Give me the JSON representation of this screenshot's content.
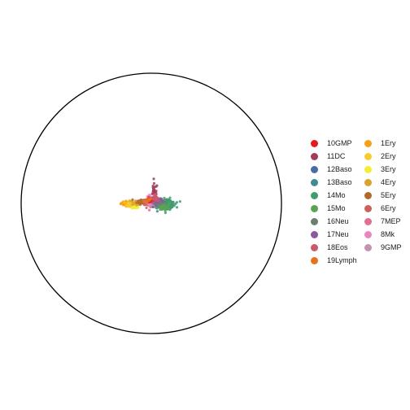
{
  "chart_data": {
    "type": "scatter",
    "title": "",
    "xlabel": "",
    "ylabel": "",
    "grid": false,
    "legend_placement": "right",
    "boundary": "circle",
    "legend": [
      {
        "label": "10GMP",
        "color": "#e41a1c"
      },
      {
        "label": "11DC",
        "color": "#a03c5c"
      },
      {
        "label": "12Baso",
        "color": "#4a6ca4"
      },
      {
        "label": "13Baso",
        "color": "#3f8b93"
      },
      {
        "label": "14Mo",
        "color": "#3f9d71"
      },
      {
        "label": "15Mo",
        "color": "#58a452"
      },
      {
        "label": "16Neu",
        "color": "#6b7f72"
      },
      {
        "label": "17Neu",
        "color": "#8a5aa0"
      },
      {
        "label": "18Eos",
        "color": "#c85a6c"
      },
      {
        "label": "19Lymph",
        "color": "#e4731e"
      },
      {
        "label": "1Ery",
        "color": "#f4a018"
      },
      {
        "label": "2Ery",
        "color": "#f8cb2c"
      },
      {
        "label": "3Ery",
        "color": "#f2ee38"
      },
      {
        "label": "4Ery",
        "color": "#d9a42d"
      },
      {
        "label": "5Ery",
        "color": "#b0682c"
      },
      {
        "label": "6Ery",
        "color": "#c9625a"
      },
      {
        "label": "7MEP",
        "color": "#e0708f"
      },
      {
        "label": "8Mk",
        "color": "#e886be"
      },
      {
        "label": "9GMP",
        "color": "#c493ae"
      }
    ],
    "clusters": [
      {
        "label": "1Ery",
        "x": -0.62,
        "y": 0.0,
        "sx": 0.08,
        "sy": 0.03,
        "n": 45
      },
      {
        "label": "2Ery",
        "x": -0.52,
        "y": -0.03,
        "sx": 0.08,
        "sy": 0.04,
        "n": 45
      },
      {
        "label": "3Ery",
        "x": -0.4,
        "y": -0.08,
        "sx": 0.05,
        "sy": 0.03,
        "n": 20
      },
      {
        "label": "4Ery",
        "x": -0.38,
        "y": 0.02,
        "sx": 0.07,
        "sy": 0.04,
        "n": 35
      },
      {
        "label": "5Ery",
        "x": -0.2,
        "y": 0.05,
        "sx": 0.08,
        "sy": 0.04,
        "n": 40
      },
      {
        "label": "6Ery",
        "x": -0.06,
        "y": 0.0,
        "sx": 0.06,
        "sy": 0.05,
        "n": 40
      },
      {
        "label": "7MEP",
        "x": 0.02,
        "y": 0.03,
        "sx": 0.07,
        "sy": 0.06,
        "n": 50
      },
      {
        "label": "8Mk",
        "x": -0.03,
        "y": 0.1,
        "sx": 0.04,
        "sy": 0.06,
        "n": 25
      },
      {
        "label": "9GMP",
        "x": 0.12,
        "y": 0.02,
        "sx": 0.06,
        "sy": 0.04,
        "n": 30
      },
      {
        "label": "10GMP",
        "x": 0.05,
        "y": 0.1,
        "sx": 0.08,
        "sy": 0.06,
        "n": 35
      },
      {
        "label": "11DC",
        "x": 0.08,
        "y": 0.3,
        "sx": 0.04,
        "sy": 0.1,
        "n": 25
      },
      {
        "label": "12Baso",
        "x": 0.2,
        "y": -0.05,
        "sx": 0.06,
        "sy": 0.05,
        "n": 30
      },
      {
        "label": "13Baso",
        "x": 0.38,
        "y": -0.05,
        "sx": 0.1,
        "sy": 0.06,
        "n": 70
      },
      {
        "label": "14Mo",
        "x": 0.42,
        "y": 0.0,
        "sx": 0.1,
        "sy": 0.06,
        "n": 80
      },
      {
        "label": "15Mo",
        "x": 0.3,
        "y": -0.1,
        "sx": 0.08,
        "sy": 0.05,
        "n": 40
      },
      {
        "label": "16Neu",
        "x": 0.24,
        "y": 0.04,
        "sx": 0.07,
        "sy": 0.05,
        "n": 30
      },
      {
        "label": "17Neu",
        "x": 0.15,
        "y": 0.08,
        "sx": 0.07,
        "sy": 0.05,
        "n": 25
      },
      {
        "label": "18Eos",
        "x": 0.1,
        "y": 0.12,
        "sx": 0.05,
        "sy": 0.06,
        "n": 25
      },
      {
        "label": "19Lymph",
        "x": -0.1,
        "y": 0.08,
        "sx": 0.05,
        "sy": 0.03,
        "n": 10
      }
    ]
  }
}
